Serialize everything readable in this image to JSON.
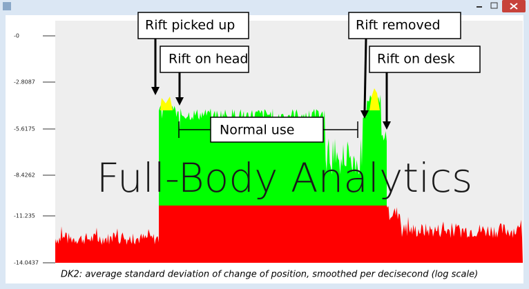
{
  "window": {
    "y_labels": [
      "-0",
      "-2.8087",
      "-5.6175",
      "-8.4262",
      "-11.235",
      "-14.0437"
    ],
    "annotations": [
      "Rift picked up",
      "Rift on head",
      "Rift removed",
      "Rift on desk",
      "Normal use"
    ],
    "watermark": "Full-Body Analytics",
    "caption": "DK2: average standard deviation of change of position, smoothed per decisecond (log scale)"
  }
}
